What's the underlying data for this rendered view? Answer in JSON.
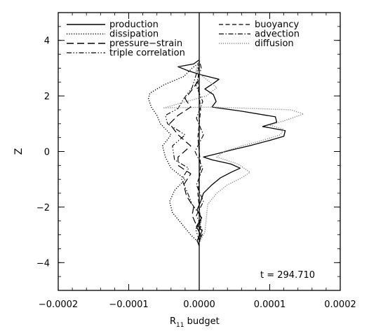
{
  "chart_data": {
    "type": "line",
    "xlabel": "R",
    "xlabel_sub": "11",
    "xlabel_suffix": " budget",
    "ylabel": "Z",
    "xlim": [
      -0.0002,
      0.0002
    ],
    "ylim": [
      -5,
      5
    ],
    "xticks": [
      -0.0002,
      -0.0001,
      0.0,
      0.0001,
      0.0002
    ],
    "xtick_labels": [
      "−0.0002",
      "−0.0001",
      "0.0000",
      "0.0001",
      "0.0002"
    ],
    "yticks": [
      -4,
      -2,
      0,
      2,
      4
    ],
    "ytick_labels": [
      "−4",
      "−2",
      "0",
      "2",
      "4"
    ],
    "annotation": "t = 294.710",
    "grid": false,
    "legend_position": "top",
    "series": [
      {
        "name": "production",
        "style": "solid",
        "points": [
          [
            0,
            -3.4
          ],
          [
            -3e-06,
            -3.2
          ],
          [
            2e-06,
            -3.0
          ],
          [
            -4e-06,
            -2.7
          ],
          [
            3e-06,
            -2.4
          ],
          [
            -3e-06,
            -2.1
          ],
          [
            2e-06,
            -1.8
          ],
          [
            6e-06,
            -1.5
          ],
          [
            1.8e-05,
            -1.2
          ],
          [
            3e-05,
            -0.95
          ],
          [
            4.5e-05,
            -0.75
          ],
          [
            5.8e-05,
            -0.6
          ],
          [
            4.5e-05,
            -0.45
          ],
          [
            1.8e-05,
            -0.3
          ],
          [
            6e-06,
            -0.2
          ],
          [
            3e-05,
            -0.05
          ],
          [
            4.5e-05,
            0.05
          ],
          [
            7e-05,
            0.2
          ],
          [
            0.0001,
            0.4
          ],
          [
            0.00012,
            0.55
          ],
          [
            0.000122,
            0.75
          ],
          [
            9e-05,
            0.9
          ],
          [
            0.00011,
            1.05
          ],
          [
            0.000108,
            1.25
          ],
          [
            6e-05,
            1.45
          ],
          [
            1.8e-05,
            1.6
          ],
          [
            2.4e-05,
            1.8
          ],
          [
            2e-05,
            2.05
          ],
          [
            8e-06,
            2.25
          ],
          [
            2e-05,
            2.45
          ],
          [
            2.8e-05,
            2.6
          ],
          [
            4e-06,
            2.75
          ],
          [
            -1.5e-05,
            2.9
          ],
          [
            -3e-05,
            3.05
          ],
          [
            -8e-06,
            3.15
          ],
          [
            0,
            3.3
          ]
        ]
      },
      {
        "name": "dissipation",
        "style": "dotted",
        "points": [
          [
            0,
            -3.3
          ],
          [
            -1.2e-05,
            -3.0
          ],
          [
            -2.5e-05,
            -2.6
          ],
          [
            -3.8e-05,
            -2.2
          ],
          [
            -4.2e-05,
            -1.8
          ],
          [
            -3.5e-05,
            -1.4
          ],
          [
            -2e-05,
            -1.0
          ],
          [
            -4e-05,
            -0.6
          ],
          [
            -4.8e-05,
            -0.2
          ],
          [
            -5.2e-05,
            0.2
          ],
          [
            -4e-05,
            0.6
          ],
          [
            -5.5e-05,
            1.0
          ],
          [
            -6e-05,
            1.3
          ],
          [
            -6.8e-05,
            1.6
          ],
          [
            -7.2e-05,
            1.9
          ],
          [
            -7e-05,
            2.1
          ],
          [
            -5e-05,
            2.4
          ],
          [
            -2.2e-05,
            2.7
          ],
          [
            -1e-05,
            3.0
          ],
          [
            0,
            3.2
          ]
        ]
      },
      {
        "name": "pressure−strain",
        "style": "long-dash",
        "points": [
          [
            0,
            -3.2
          ],
          [
            6e-06,
            -2.9
          ],
          [
            -5e-06,
            -2.6
          ],
          [
            -1e-05,
            -2.3
          ],
          [
            -8e-06,
            -2.0
          ],
          [
            -1.8e-05,
            -1.6
          ],
          [
            -2.2e-05,
            -1.2
          ],
          [
            -1.2e-05,
            -0.8
          ],
          [
            -3e-05,
            -0.5
          ],
          [
            -3e-05,
            -0.2
          ],
          [
            -1.2e-05,
            0.2
          ],
          [
            -3e-05,
            0.6
          ],
          [
            -4.2e-05,
            1.0
          ],
          [
            -3e-05,
            1.3
          ],
          [
            -1.2e-05,
            1.6
          ],
          [
            -2e-05,
            1.9
          ],
          [
            -8e-06,
            2.3
          ],
          [
            0,
            2.6
          ]
        ]
      },
      {
        "name": "triple correlation",
        "style": "dash-dot-dot",
        "points": [
          [
            0,
            -3.2
          ],
          [
            -5e-06,
            -2.8
          ],
          [
            4e-06,
            -2.4
          ],
          [
            -1e-05,
            -1.9
          ],
          [
            -1.8e-05,
            -1.4
          ],
          [
            -2.5e-05,
            -1.0
          ],
          [
            -1.5e-05,
            -0.6
          ],
          [
            -3.5e-05,
            -0.3
          ],
          [
            -3.8e-05,
            0.2
          ],
          [
            -2e-05,
            0.6
          ],
          [
            -4.5e-05,
            1.0
          ],
          [
            -4.8e-05,
            1.3
          ],
          [
            -3e-05,
            1.55
          ],
          [
            -2.2e-05,
            1.9
          ],
          [
            -1e-05,
            2.3
          ],
          [
            -4e-06,
            2.8
          ],
          [
            0,
            3.2
          ]
        ]
      },
      {
        "name": "buoyancy",
        "style": "dashed",
        "points": [
          [
            0,
            -3.3
          ],
          [
            2e-06,
            -2.5
          ],
          [
            -2e-06,
            -1.5
          ],
          [
            2e-06,
            -0.5
          ],
          [
            -2e-06,
            0.5
          ],
          [
            2e-06,
            1.5
          ],
          [
            -2e-06,
            2.5
          ],
          [
            0,
            3.3
          ]
        ]
      },
      {
        "name": "advection",
        "style": "dash-dot",
        "points": [
          [
            0,
            -3.3
          ],
          [
            4e-06,
            -2.8
          ],
          [
            -4e-06,
            -2.3
          ],
          [
            6e-06,
            -1.8
          ],
          [
            -4e-06,
            -1.2
          ],
          [
            5e-06,
            -0.6
          ],
          [
            -6e-06,
            0.0
          ],
          [
            6e-06,
            0.6
          ],
          [
            -4e-06,
            1.2
          ],
          [
            5e-06,
            1.8
          ],
          [
            -5e-06,
            2.4
          ],
          [
            3e-06,
            3.0
          ],
          [
            0,
            3.3
          ]
        ]
      },
      {
        "name": "diffusion",
        "style": "dotted-gray",
        "points": [
          [
            0,
            -3.3
          ],
          [
            8e-06,
            -2.9
          ],
          [
            1e-05,
            -2.4
          ],
          [
            1.2e-05,
            -1.9
          ],
          [
            2.5e-05,
            -1.5
          ],
          [
            4e-05,
            -1.2
          ],
          [
            6e-05,
            -0.95
          ],
          [
            7.2e-05,
            -0.75
          ],
          [
            5.5e-05,
            -0.45
          ],
          [
            2.5e-05,
            -0.2
          ],
          [
            3.5e-05,
            0.0
          ],
          [
            6e-05,
            0.2
          ],
          [
            9e-05,
            0.4
          ],
          [
            0.000115,
            0.6
          ],
          [
            0.00012,
            0.8
          ],
          [
            0.0001,
            0.95
          ],
          [
            0.00012,
            1.1
          ],
          [
            0.000148,
            1.35
          ],
          [
            0.00013,
            1.5
          ],
          [
            7.5e-05,
            1.55
          ],
          [
            2e-05,
            1.6
          ],
          [
            -5e-05,
            1.57
          ],
          [
            -2.5e-05,
            1.75
          ],
          [
            1e-05,
            2.0
          ],
          [
            2.5e-05,
            2.3
          ],
          [
            1e-05,
            2.6
          ],
          [
            -5e-06,
            2.9
          ],
          [
            0,
            3.3
          ]
        ]
      }
    ]
  }
}
